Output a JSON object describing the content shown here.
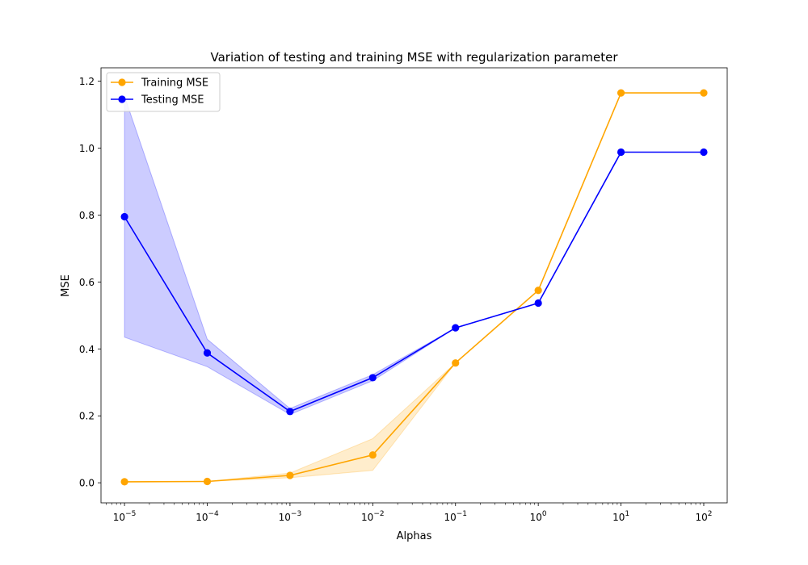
{
  "chart_data": {
    "type": "line",
    "title": "Variation of testing and training MSE with regularization parameter",
    "xlabel": "Alphas",
    "ylabel": "MSE",
    "xscale": "log",
    "xlim": [
      5.2e-06,
      192.0
    ],
    "ylim": [
      -0.06,
      1.24
    ],
    "x": [
      1e-05,
      0.0001,
      0.001,
      0.01,
      0.1,
      1,
      10,
      100
    ],
    "x_tick_labels": [
      {
        "base": "10",
        "exp": "−5",
        "value": 1e-05
      },
      {
        "base": "10",
        "exp": "−4",
        "value": 0.0001
      },
      {
        "base": "10",
        "exp": "−3",
        "value": 0.001
      },
      {
        "base": "10",
        "exp": "−2",
        "value": 0.01
      },
      {
        "base": "10",
        "exp": "−1",
        "value": 0.1
      },
      {
        "base": "10",
        "exp": "0",
        "value": 1
      },
      {
        "base": "10",
        "exp": "1",
        "value": 10
      },
      {
        "base": "10",
        "exp": "2",
        "value": 100
      }
    ],
    "y_ticks": [
      {
        "value": 0.0,
        "label": "0.0"
      },
      {
        "value": 0.2,
        "label": "0.2"
      },
      {
        "value": 0.4,
        "label": "0.4"
      },
      {
        "value": 0.6,
        "label": "0.6"
      },
      {
        "value": 0.8,
        "label": "0.8"
      },
      {
        "value": 1.0,
        "label": "1.0"
      },
      {
        "value": 1.2,
        "label": "1.2"
      }
    ],
    "legend_position": "top-left",
    "series": [
      {
        "name": "Training MSE",
        "color": "#ffa500",
        "values": [
          0.003,
          0.004,
          0.022,
          0.083,
          0.358,
          0.575,
          1.165,
          1.165
        ],
        "band_lower": [
          0.003,
          0.004,
          0.015,
          0.037,
          0.358,
          0.575,
          1.165,
          1.165
        ],
        "band_upper": [
          0.003,
          0.004,
          0.029,
          0.132,
          0.358,
          0.575,
          1.165,
          1.165
        ]
      },
      {
        "name": "Testing MSE",
        "color": "#0000ff",
        "values": [
          0.795,
          0.388,
          0.213,
          0.314,
          0.463,
          0.537,
          0.988,
          0.988
        ],
        "band_lower": [
          0.435,
          0.347,
          0.204,
          0.305,
          0.463,
          0.537,
          0.988,
          0.988
        ],
        "band_upper": [
          1.155,
          0.429,
          0.222,
          0.323,
          0.463,
          0.537,
          0.988,
          0.988
        ]
      }
    ]
  }
}
